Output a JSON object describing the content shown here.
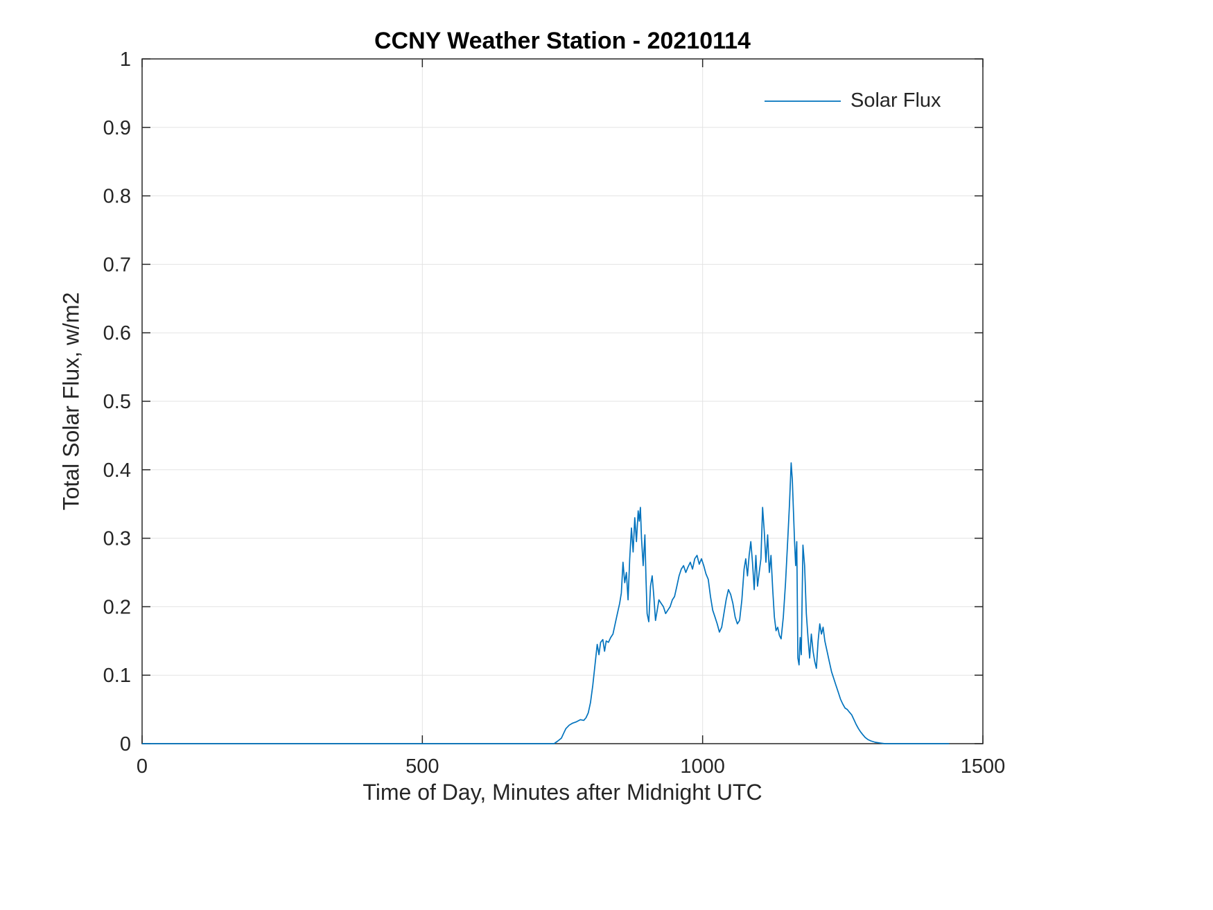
{
  "title": "CCNY Weather Station - 20210114",
  "chart_data": {
    "type": "line",
    "title": "CCNY Weather Station - 20210114",
    "xlabel": "Time of Day, Minutes after Midnight UTC",
    "ylabel": "Total Solar Flux, w/m2",
    "xlim": [
      0,
      1500
    ],
    "ylim": [
      0,
      1
    ],
    "xticks": [
      0,
      500,
      1000,
      1500
    ],
    "xtick_labels": [
      "0",
      "500",
      "1000",
      "1500"
    ],
    "yticks": [
      0,
      0.1,
      0.2,
      0.3,
      0.4,
      0.5,
      0.6,
      0.7,
      0.8,
      0.9,
      1
    ],
    "ytick_labels": [
      "0",
      "0.1",
      "0.2",
      "0.3",
      "0.4",
      "0.5",
      "0.6",
      "0.7",
      "0.8",
      "0.9",
      "1"
    ],
    "grid": true,
    "legend": {
      "position": "top-right",
      "entries": [
        "Solar Flux"
      ]
    },
    "colors": {
      "line": "#0072BD",
      "axis": "#262626",
      "grid": "#e3e3e3",
      "background": "#ffffff"
    },
    "series": [
      {
        "name": "Solar Flux",
        "points": [
          [
            0,
            0
          ],
          [
            735,
            0
          ],
          [
            742,
            0.004
          ],
          [
            748,
            0.008
          ],
          [
            752,
            0.015
          ],
          [
            756,
            0.022
          ],
          [
            762,
            0.027
          ],
          [
            768,
            0.03
          ],
          [
            775,
            0.032
          ],
          [
            782,
            0.035
          ],
          [
            788,
            0.034
          ],
          [
            792,
            0.038
          ],
          [
            796,
            0.045
          ],
          [
            800,
            0.06
          ],
          [
            804,
            0.085
          ],
          [
            808,
            0.115
          ],
          [
            812,
            0.145
          ],
          [
            815,
            0.13
          ],
          [
            818,
            0.148
          ],
          [
            822,
            0.152
          ],
          [
            825,
            0.135
          ],
          [
            828,
            0.15
          ],
          [
            832,
            0.148
          ],
          [
            836,
            0.155
          ],
          [
            840,
            0.16
          ],
          [
            844,
            0.175
          ],
          [
            848,
            0.19
          ],
          [
            852,
            0.205
          ],
          [
            855,
            0.22
          ],
          [
            858,
            0.265
          ],
          [
            861,
            0.235
          ],
          [
            864,
            0.25
          ],
          [
            867,
            0.21
          ],
          [
            870,
            0.27
          ],
          [
            873,
            0.315
          ],
          [
            876,
            0.28
          ],
          [
            879,
            0.33
          ],
          [
            882,
            0.295
          ],
          [
            885,
            0.34
          ],
          [
            887,
            0.325
          ],
          [
            889,
            0.345
          ],
          [
            891,
            0.3
          ],
          [
            894,
            0.26
          ],
          [
            897,
            0.305
          ],
          [
            899,
            0.24
          ],
          [
            901,
            0.19
          ],
          [
            904,
            0.178
          ],
          [
            907,
            0.23
          ],
          [
            910,
            0.245
          ],
          [
            913,
            0.215
          ],
          [
            916,
            0.18
          ],
          [
            919,
            0.195
          ],
          [
            922,
            0.21
          ],
          [
            926,
            0.205
          ],
          [
            930,
            0.2
          ],
          [
            934,
            0.19
          ],
          [
            938,
            0.195
          ],
          [
            942,
            0.2
          ],
          [
            946,
            0.21
          ],
          [
            950,
            0.215
          ],
          [
            954,
            0.23
          ],
          [
            958,
            0.245
          ],
          [
            962,
            0.255
          ],
          [
            966,
            0.26
          ],
          [
            970,
            0.25
          ],
          [
            974,
            0.258
          ],
          [
            978,
            0.265
          ],
          [
            982,
            0.255
          ],
          [
            986,
            0.27
          ],
          [
            990,
            0.275
          ],
          [
            994,
            0.262
          ],
          [
            998,
            0.27
          ],
          [
            1002,
            0.26
          ],
          [
            1006,
            0.248
          ],
          [
            1010,
            0.24
          ],
          [
            1014,
            0.215
          ],
          [
            1018,
            0.195
          ],
          [
            1022,
            0.185
          ],
          [
            1026,
            0.175
          ],
          [
            1030,
            0.163
          ],
          [
            1034,
            0.17
          ],
          [
            1038,
            0.19
          ],
          [
            1042,
            0.21
          ],
          [
            1046,
            0.225
          ],
          [
            1050,
            0.218
          ],
          [
            1054,
            0.205
          ],
          [
            1058,
            0.185
          ],
          [
            1062,
            0.175
          ],
          [
            1066,
            0.18
          ],
          [
            1070,
            0.21
          ],
          [
            1074,
            0.255
          ],
          [
            1077,
            0.27
          ],
          [
            1080,
            0.245
          ],
          [
            1083,
            0.275
          ],
          [
            1086,
            0.295
          ],
          [
            1089,
            0.265
          ],
          [
            1092,
            0.225
          ],
          [
            1095,
            0.275
          ],
          [
            1098,
            0.23
          ],
          [
            1101,
            0.25
          ],
          [
            1104,
            0.27
          ],
          [
            1107,
            0.345
          ],
          [
            1110,
            0.31
          ],
          [
            1113,
            0.265
          ],
          [
            1116,
            0.305
          ],
          [
            1119,
            0.25
          ],
          [
            1122,
            0.275
          ],
          [
            1125,
            0.225
          ],
          [
            1128,
            0.185
          ],
          [
            1131,
            0.165
          ],
          [
            1134,
            0.17
          ],
          [
            1137,
            0.158
          ],
          [
            1140,
            0.153
          ],
          [
            1144,
            0.185
          ],
          [
            1148,
            0.235
          ],
          [
            1152,
            0.3
          ],
          [
            1155,
            0.35
          ],
          [
            1158,
            0.41
          ],
          [
            1160,
            0.385
          ],
          [
            1162,
            0.34
          ],
          [
            1164,
            0.295
          ],
          [
            1166,
            0.26
          ],
          [
            1168,
            0.295
          ],
          [
            1170,
            0.125
          ],
          [
            1172,
            0.115
          ],
          [
            1174,
            0.155
          ],
          [
            1176,
            0.13
          ],
          [
            1179,
            0.29
          ],
          [
            1182,
            0.26
          ],
          [
            1185,
            0.19
          ],
          [
            1188,
            0.155
          ],
          [
            1191,
            0.125
          ],
          [
            1194,
            0.16
          ],
          [
            1197,
            0.135
          ],
          [
            1200,
            0.12
          ],
          [
            1203,
            0.11
          ],
          [
            1206,
            0.15
          ],
          [
            1209,
            0.175
          ],
          [
            1212,
            0.16
          ],
          [
            1215,
            0.17
          ],
          [
            1218,
            0.15
          ],
          [
            1222,
            0.135
          ],
          [
            1226,
            0.12
          ],
          [
            1230,
            0.105
          ],
          [
            1234,
            0.095
          ],
          [
            1238,
            0.085
          ],
          [
            1242,
            0.075
          ],
          [
            1246,
            0.065
          ],
          [
            1250,
            0.058
          ],
          [
            1254,
            0.052
          ],
          [
            1258,
            0.05
          ],
          [
            1262,
            0.046
          ],
          [
            1266,
            0.042
          ],
          [
            1270,
            0.035
          ],
          [
            1274,
            0.028
          ],
          [
            1278,
            0.022
          ],
          [
            1282,
            0.017
          ],
          [
            1286,
            0.013
          ],
          [
            1290,
            0.009
          ],
          [
            1295,
            0.006
          ],
          [
            1300,
            0.004
          ],
          [
            1308,
            0.002
          ],
          [
            1316,
            0.001
          ],
          [
            1325,
            0
          ],
          [
            1440,
            0
          ]
        ]
      }
    ]
  }
}
